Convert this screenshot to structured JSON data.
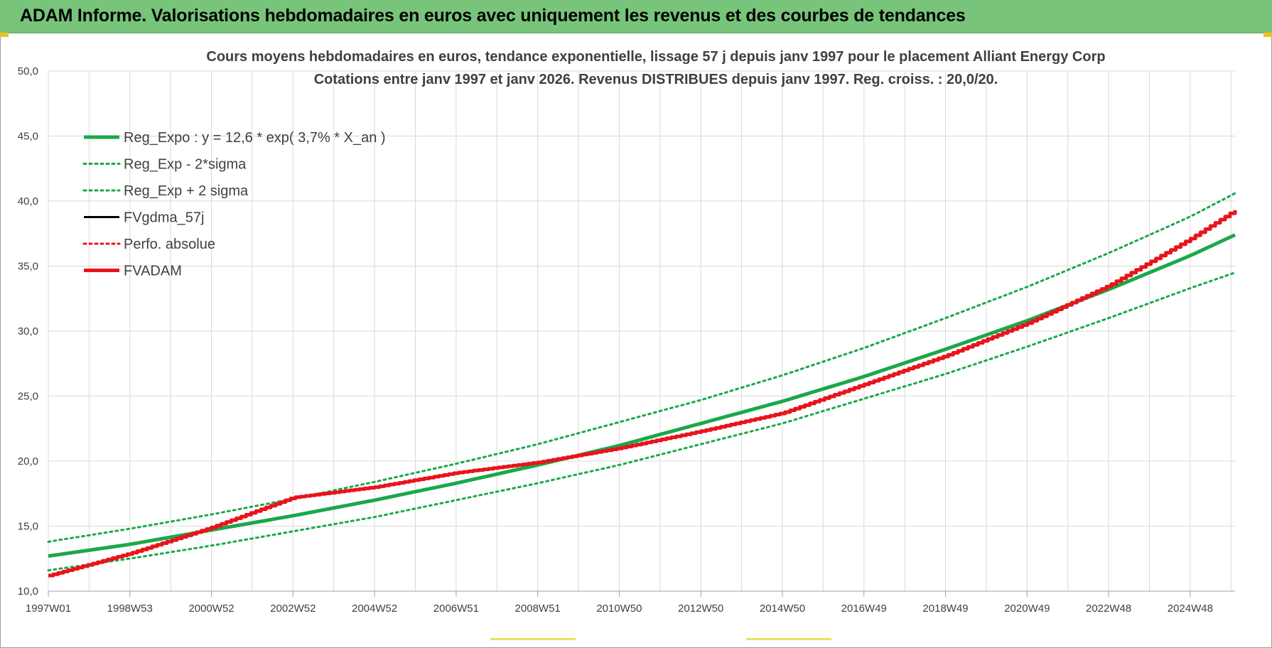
{
  "header": {
    "title": "ADAM Informe. Valorisations hebdomadaires en euros avec uniquement les revenus et des courbes de tendances"
  },
  "colors": {
    "header_bg": "#77c47a",
    "reg_green": "#1aa84a",
    "red": "#e8141c",
    "black": "#000000",
    "grid": "#d9d9d9"
  },
  "chart_data": {
    "type": "line",
    "title": "Cours moyens hebdomadaires en euros, tendance exponentielle, lissage 57 j depuis janv 1997 pour le placement Alliant Energy Corp",
    "subtitle": "Cotations entre janv 1997 et janv 2026. Revenus DISTRIBUES depuis janv 1997. Reg. croiss. : 20,0/20.",
    "xlabel": "",
    "ylabel": "",
    "ylim": [
      10,
      50
    ],
    "yticks": [
      "10,0",
      "15,0",
      "20,0",
      "25,0",
      "30,0",
      "35,0",
      "40,0",
      "45,0",
      "50,0"
    ],
    "xlim": [
      1997.0,
      2026.1
    ],
    "xticks": [
      {
        "label": "1997W01",
        "year": 1997.0
      },
      {
        "label": "1998W53",
        "year": 1999.0
      },
      {
        "label": "2000W52",
        "year": 2001.0
      },
      {
        "label": "2002W52",
        "year": 2003.0
      },
      {
        "label": "2004W52",
        "year": 2005.0
      },
      {
        "label": "2006W51",
        "year": 2007.0
      },
      {
        "label": "2008W51",
        "year": 2009.0
      },
      {
        "label": "2010W50",
        "year": 2011.0
      },
      {
        "label": "2012W50",
        "year": 2013.0
      },
      {
        "label": "2014W50",
        "year": 2015.0
      },
      {
        "label": "2016W49",
        "year": 2017.0
      },
      {
        "label": "2018W49",
        "year": 2019.0
      },
      {
        "label": "2020W49",
        "year": 2021.0
      },
      {
        "label": "2022W48",
        "year": 2023.0
      },
      {
        "label": "2024W48",
        "year": 2025.0
      }
    ],
    "grid": true,
    "legend_position": "top-left",
    "series": [
      {
        "name": "Reg_Expo : y = 12,6 * exp( 3,7% *  X_an )",
        "style": "solid-thick",
        "color": "#1aa84a",
        "x": [
          1997.0,
          1999.0,
          2001.0,
          2003.0,
          2005.0,
          2007.0,
          2009.0,
          2011.0,
          2013.0,
          2015.0,
          2017.0,
          2019.0,
          2021.0,
          2023.0,
          2025.0,
          2026.1
        ],
        "y": [
          12.7,
          13.6,
          14.7,
          15.8,
          17.0,
          18.3,
          19.7,
          21.2,
          22.9,
          24.6,
          26.5,
          28.6,
          30.8,
          33.2,
          35.8,
          37.4
        ]
      },
      {
        "name": "Reg_Exp - 2*sigma",
        "style": "dotted",
        "color": "#1aa84a",
        "x": [
          1997.0,
          1999.0,
          2001.0,
          2003.0,
          2005.0,
          2007.0,
          2009.0,
          2011.0,
          2013.0,
          2015.0,
          2017.0,
          2019.0,
          2021.0,
          2023.0,
          2025.0,
          2026.1
        ],
        "y": [
          11.6,
          12.5,
          13.5,
          14.6,
          15.7,
          17.0,
          18.3,
          19.7,
          21.3,
          22.9,
          24.8,
          26.7,
          28.8,
          31.0,
          33.3,
          34.5
        ]
      },
      {
        "name": "Reg_Exp + 2 sigma",
        "style": "dotted",
        "color": "#1aa84a",
        "x": [
          1997.0,
          1999.0,
          2001.0,
          2003.0,
          2005.0,
          2007.0,
          2009.0,
          2011.0,
          2013.0,
          2015.0,
          2017.0,
          2019.0,
          2021.0,
          2023.0,
          2025.0,
          2026.1
        ],
        "y": [
          13.8,
          14.8,
          15.9,
          17.1,
          18.4,
          19.8,
          21.3,
          23.0,
          24.7,
          26.6,
          28.7,
          31.0,
          33.4,
          36.0,
          38.8,
          40.6
        ]
      },
      {
        "name": "FVgdma_57j",
        "style": "solid",
        "color": "#000000",
        "x": [],
        "y": []
      },
      {
        "name": "Perfo. absolue",
        "style": "dotted",
        "color": "#e8141c",
        "x": [],
        "y": []
      },
      {
        "name": "FVADAM",
        "style": "solid-thick",
        "color": "#e8141c",
        "x": [
          1997.0,
          1999.0,
          2001.0,
          2003.0,
          2005.0,
          2007.0,
          2009.0,
          2011.0,
          2013.0,
          2015.0,
          2017.0,
          2019.0,
          2021.0,
          2023.0,
          2025.0,
          2026.1
        ],
        "y": [
          11.2,
          12.9,
          14.9,
          17.2,
          18.0,
          19.1,
          19.9,
          21.0,
          22.3,
          23.7,
          25.9,
          28.1,
          30.6,
          33.5,
          37.1,
          39.3
        ]
      }
    ]
  }
}
